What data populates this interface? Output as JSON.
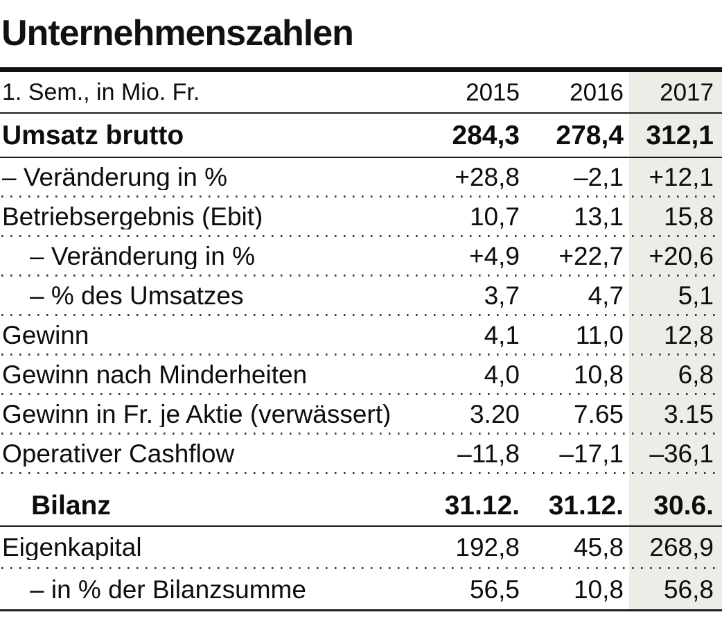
{
  "chart_data": {
    "type": "table",
    "title": "Unternehmenszahlen",
    "unit_label": "1. Sem., in Mio. Fr.",
    "columns": [
      "2015",
      "2016",
      "2017"
    ],
    "highlighted_column": "2017",
    "highlight_color": "#edece6",
    "rows": [
      {
        "label": "Umsatz brutto",
        "values": [
          "284,3",
          "278,4",
          "312,1"
        ]
      },
      {
        "label": "– Veränderung in %",
        "values": [
          "+28,8",
          "–2,1",
          "+12,1"
        ]
      },
      {
        "label": "Betriebsergebnis (Ebit)",
        "values": [
          "10,7",
          "13,1",
          "15,8"
        ]
      },
      {
        "label": "– Veränderung in %",
        "values": [
          "+4,9",
          "+22,7",
          "+20,6"
        ]
      },
      {
        "label": "– % des Umsatzes",
        "values": [
          "3,7",
          "4,7",
          "5,1"
        ]
      },
      {
        "label": "Gewinn",
        "values": [
          "4,1",
          "11,0",
          "12,8"
        ]
      },
      {
        "label": "Gewinn nach Minderheiten",
        "values": [
          "4,0",
          "10,8",
          "6,8"
        ]
      },
      {
        "label": "Gewinn in Fr. je Aktie (verwässert)",
        "values": [
          "3.20",
          "7.65",
          "3.15"
        ]
      },
      {
        "label": "Operativer Cashflow",
        "values": [
          "–11,8",
          "–17,1",
          "–36,1"
        ]
      },
      {
        "label": "Bilanz",
        "values": [
          "31.12.",
          "31.12.",
          "30.6."
        ]
      },
      {
        "label": "Eigenkapital",
        "values": [
          "192,8",
          "45,8",
          "268,9"
        ]
      },
      {
        "label": "– in % der Bilanzsumme",
        "values": [
          "56,5",
          "10,8",
          "56,8"
        ]
      }
    ]
  }
}
